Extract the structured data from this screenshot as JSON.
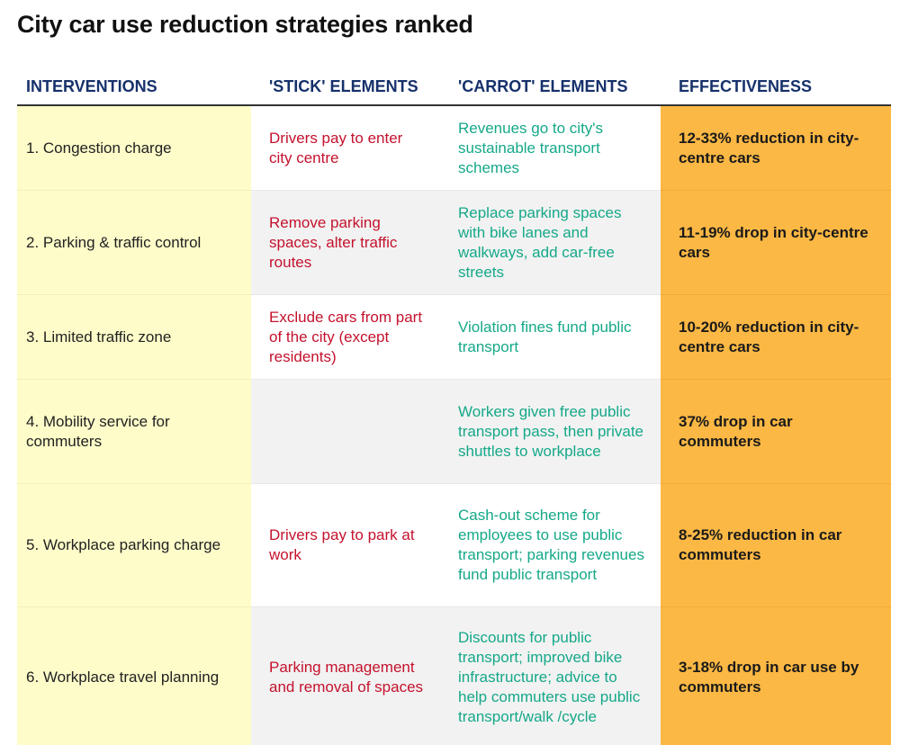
{
  "title": "City car use reduction strategies ranked",
  "columns": [
    "INTERVENTIONS",
    "'STICK' ELEMENTS",
    "'CARROT' ELEMENTS",
    "EFFECTIVENESS"
  ],
  "colors": {
    "header_text": "#16316b",
    "intervention_bg": "#fefcc9",
    "stick_text": "#c4122d",
    "carrot_text": "#15a889",
    "effectiveness_bg": "#fcb844"
  },
  "chart_data": {
    "type": "table",
    "title": "City car use reduction strategies ranked",
    "columns": [
      "INTERVENTIONS",
      "'STICK' ELEMENTS",
      "'CARROT' ELEMENTS",
      "EFFECTIVENESS"
    ],
    "rows": [
      {
        "intervention": "1. Congestion charge",
        "stick": "Drivers pay to enter city centre",
        "carrot": "Revenues go to city's sustainable transport schemes",
        "effectiveness": "12-33% reduction in city-centre cars"
      },
      {
        "intervention": "2. Parking & traffic control",
        "stick": "Remove parking spaces, alter traffic routes",
        "carrot": "Replace parking spaces with bike lanes and walkways, add car-free streets",
        "effectiveness": "11-19% drop in city-centre cars"
      },
      {
        "intervention": "3. Limited traffic zone",
        "stick": "Exclude cars from part of the city (except residents)",
        "carrot": "Violation fines fund public transport",
        "effectiveness": "10-20% reduction in city-centre cars"
      },
      {
        "intervention": "4. Mobility service for commuters",
        "stick": "",
        "carrot": "Workers given free public transport pass, then private shuttles to workplace",
        "effectiveness": "37% drop in car commuters"
      },
      {
        "intervention": "5. Workplace parking charge",
        "stick": "Drivers pay to park at work",
        "carrot": "Cash-out scheme for employees to use public transport; parking revenues fund public transport",
        "effectiveness": "8-25% reduction in car commuters"
      },
      {
        "intervention": "6. Workplace travel planning",
        "stick": "Parking management and removal of spaces",
        "carrot": "Discounts for public transport; improved bike infrastructure; advice to help commuters use public transport/walk /cycle",
        "effectiveness": "3-18% drop in car use by commuters"
      }
    ]
  }
}
